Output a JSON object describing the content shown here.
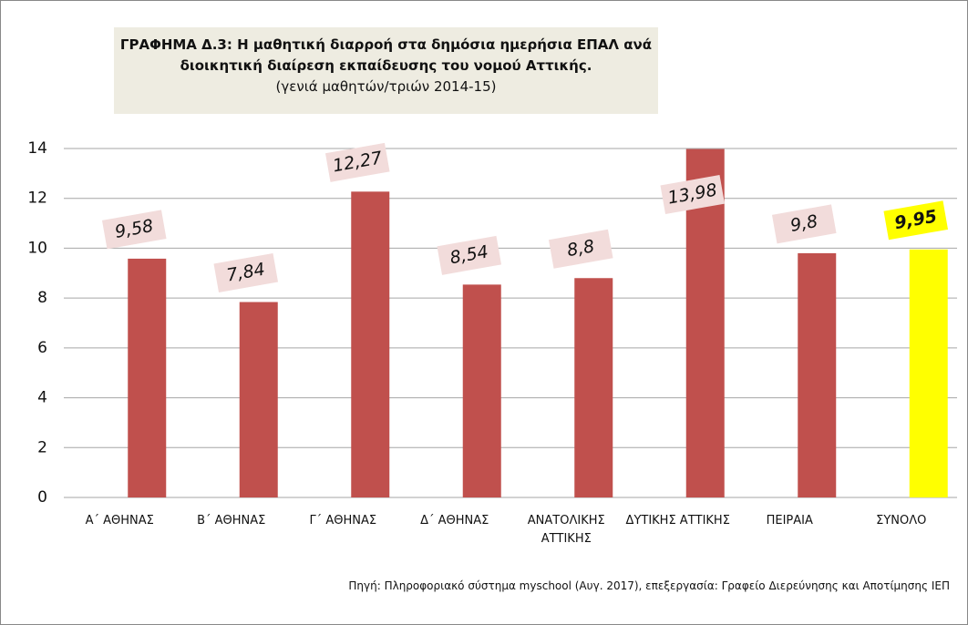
{
  "chart_data": {
    "type": "bar",
    "title": "ΓΡΑΦΗΜΑ Δ.3: Η μαθητική διαρροή στα δημόσια ημερήσια ΕΠΑΛ ανά διοικητική διαίρεση εκπαίδευσης του νομού Αττικής.",
    "subtitle": "(γενιά μαθητών/τριών 2014-15)",
    "source": "Πηγή: Πληροφοριακό σύστημα myschool (Αυγ. 2017), επεξεργασία: Γραφείο Διερεύνησης και Αποτίμησης ΙΕΠ",
    "categories": [
      "Α΄ ΑΘΗΝΑΣ",
      "Β΄ ΑΘΗΝΑΣ",
      "Γ΄ ΑΘΗΝΑΣ",
      "Δ΄ ΑΘΗΝΑΣ",
      "ΑΝΑΤΟΛΙΚΗΣ ΑΤΤΙΚΗΣ",
      "ΔΥΤΙΚΗΣ ΑΤΤΙΚΗΣ",
      "ΠΕΙΡΑΙΑ",
      "ΣΥΝΟΛΟ"
    ],
    "values": [
      9.58,
      7.84,
      12.27,
      8.54,
      8.8,
      13.98,
      9.8,
      9.95
    ],
    "value_labels": [
      "9,58",
      "7,84",
      "12,27",
      "8,54",
      "8,8",
      "13,98",
      "9,8",
      "9,95"
    ],
    "colors": [
      "#c0504d",
      "#c0504d",
      "#c0504d",
      "#c0504d",
      "#c0504d",
      "#c0504d",
      "#c0504d",
      "#ffff00"
    ],
    "ylim": [
      0,
      14
    ],
    "yticks": [
      0,
      2,
      4,
      6,
      8,
      10,
      12,
      14
    ],
    "grid": true
  }
}
